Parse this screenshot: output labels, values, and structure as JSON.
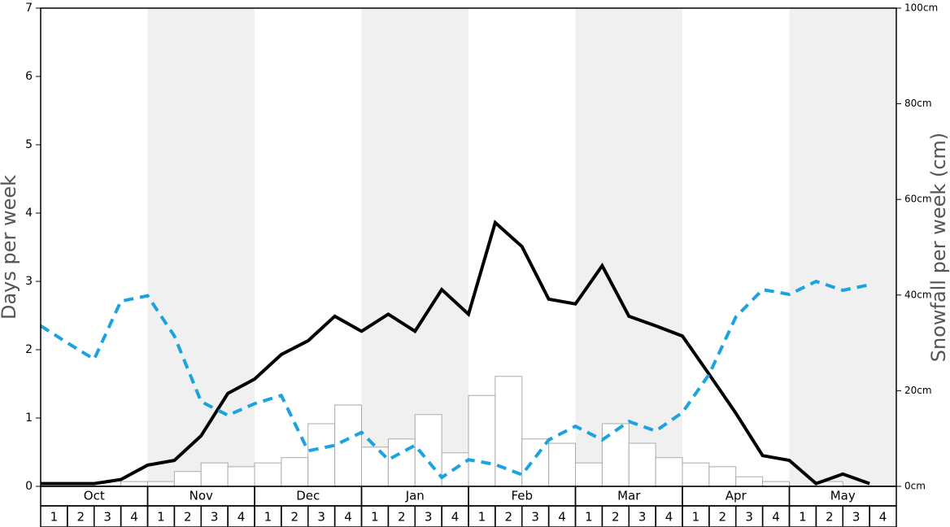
{
  "chart_data": {
    "type": "bar",
    "y_label": "Days per week",
    "y2_label": "Snowfall per week (cm)",
    "months": [
      "Oct",
      "Nov",
      "Dec",
      "Jan",
      "Feb",
      "Mar",
      "Apr",
      "May"
    ],
    "categories": [
      "1",
      "2",
      "3",
      "4",
      "1",
      "2",
      "3",
      "4",
      "1",
      "2",
      "3",
      "4",
      "1",
      "2",
      "3",
      "4",
      "1",
      "2",
      "3",
      "4",
      "1",
      "2",
      "3",
      "4",
      "1",
      "2",
      "3",
      "4",
      "1",
      "2",
      "3",
      "4"
    ],
    "ylim": [
      0,
      7
    ],
    "yticks": [
      0,
      1,
      2,
      3,
      4,
      5,
      6,
      7
    ],
    "y2lim": [
      0,
      100
    ],
    "y2ticks": [
      {
        "value": 0,
        "label": "0cm"
      },
      {
        "value": 20,
        "label": "20cm"
      },
      {
        "value": 40,
        "label": "40cm"
      },
      {
        "value": 60,
        "label": "60cm"
      },
      {
        "value": 80,
        "label": "80cm"
      },
      {
        "value": 100,
        "label": "100cm"
      }
    ],
    "series": [
      {
        "type": "bar",
        "axis": "y2",
        "color": "#ffffff",
        "values": [
          0,
          0,
          0,
          1.0,
          1.0,
          3.1,
          4.9,
          4.1,
          4.9,
          6.0,
          13.1,
          17.0,
          8.2,
          9.9,
          15.0,
          7.0,
          19.0,
          23.0,
          9.9,
          9.0,
          4.9,
          13.1,
          9.0,
          6.0,
          4.9,
          4.1,
          2.0,
          1.0,
          0,
          1.0,
          0,
          0
        ]
      },
      {
        "type": "line",
        "color": "#000000",
        "values": [
          0.04,
          0.04,
          0.04,
          0.1,
          0.31,
          0.38,
          0.74,
          1.36,
          1.57,
          1.93,
          2.13,
          2.49,
          2.27,
          2.52,
          2.27,
          2.88,
          2.52,
          3.86,
          3.51,
          2.74,
          2.67,
          3.23,
          2.49,
          2.35,
          2.2,
          1.64,
          1.07,
          0.45,
          0.38,
          0.04,
          0.18,
          0.04
        ]
      },
      {
        "type": "line",
        "style": "dashed",
        "color": "#1aa3e0",
        "values": [
          2.35,
          2.1,
          1.86,
          2.71,
          2.79,
          2.2,
          1.24,
          1.04,
          1.21,
          1.33,
          0.52,
          0.6,
          0.79,
          0.39,
          0.6,
          0.13,
          0.39,
          0.32,
          0.17,
          0.68,
          0.88,
          0.68,
          0.95,
          0.81,
          1.08,
          1.64,
          2.48,
          2.88,
          2.81,
          3.0,
          2.87,
          2.95
        ]
      }
    ]
  }
}
